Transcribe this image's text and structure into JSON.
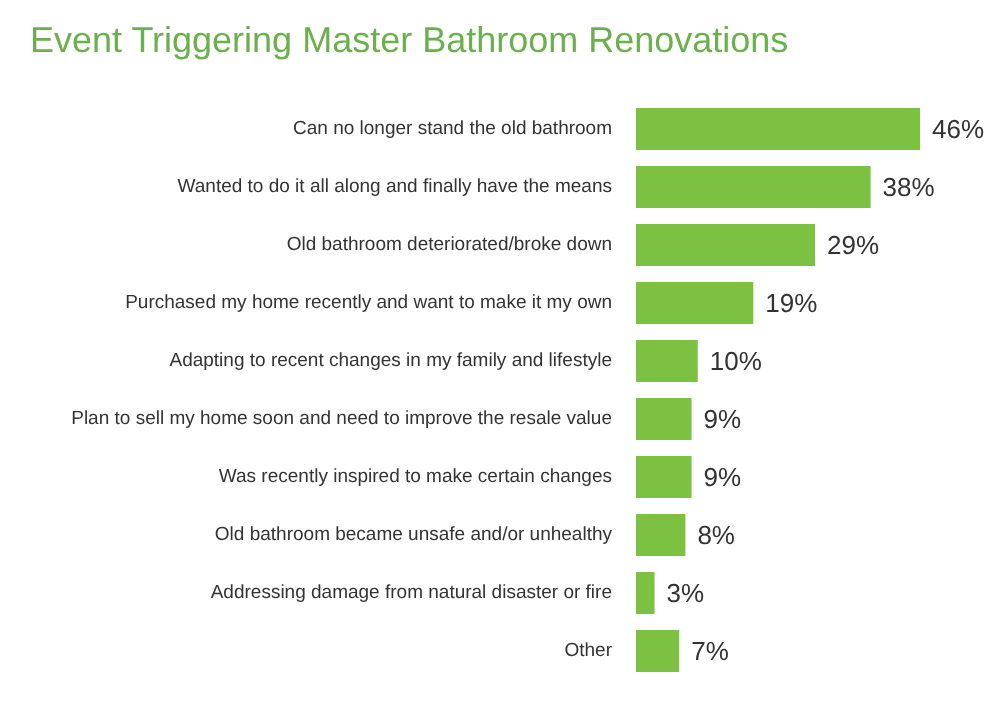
{
  "chart_data": {
    "type": "bar",
    "orientation": "horizontal",
    "title": "Event Triggering Master Bathroom Renovations",
    "categories": [
      "Can no longer stand the old bathroom",
      "Wanted to do it all along and finally have the means",
      "Old bathroom deteriorated/broke down",
      "Purchased my home recently and want to make it my own",
      "Adapting to recent changes in my family and lifestyle",
      "Plan to sell my home soon and need to improve the resale value",
      "Was recently inspired to make certain changes",
      "Old bathroom became unsafe and/or unhealthy",
      "Addressing damage from natural disaster or fire",
      "Other"
    ],
    "values": [
      46,
      38,
      29,
      19,
      10,
      9,
      9,
      8,
      3,
      7
    ],
    "value_labels": [
      "46%",
      "38%",
      "29%",
      "19%",
      "10%",
      "9%",
      "9%",
      "8%",
      "3%",
      "7%"
    ],
    "color": "#7cc142",
    "tick_labels": "y"
  }
}
